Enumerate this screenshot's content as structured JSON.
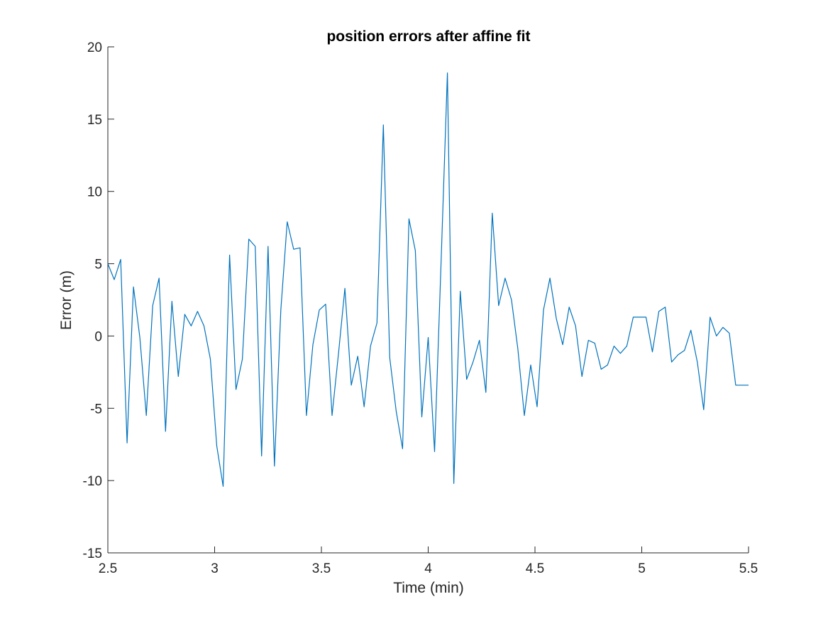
{
  "chart_data": {
    "type": "line",
    "title": "position errors after affine fit",
    "xlabel": "Time (min)",
    "ylabel": "Error (m)",
    "xlim": [
      2.5,
      5.5
    ],
    "ylim": [
      -15,
      20
    ],
    "xticks": [
      2.5,
      3,
      3.5,
      4,
      4.5,
      5,
      5.5
    ],
    "xtick_labels": [
      "2.5",
      "3",
      "3.5",
      "4",
      "4.5",
      "5",
      "5.5"
    ],
    "yticks": [
      -15,
      -10,
      -5,
      0,
      5,
      10,
      15,
      20
    ],
    "ytick_labels": [
      "-15",
      "-10",
      "-5",
      "0",
      "5",
      "10",
      "15",
      "20"
    ],
    "grid": false,
    "series": [
      {
        "color": "#0072BD",
        "x": [
          2.5,
          2.53,
          2.56,
          2.59,
          2.62,
          2.65,
          2.68,
          2.71,
          2.74,
          2.77,
          2.8,
          2.83,
          2.86,
          2.89,
          2.92,
          2.95,
          2.98,
          3.01,
          3.04,
          3.07,
          3.1,
          3.13,
          3.16,
          3.19,
          3.22,
          3.25,
          3.28,
          3.31,
          3.34,
          3.37,
          3.4,
          3.43,
          3.46,
          3.49,
          3.52,
          3.55,
          3.58,
          3.61,
          3.64,
          3.67,
          3.7,
          3.73,
          3.76,
          3.79,
          3.82,
          3.85,
          3.88,
          3.91,
          3.94,
          3.97,
          4.0,
          4.03,
          4.06,
          4.09,
          4.12,
          4.15,
          4.18,
          4.21,
          4.24,
          4.27,
          4.3,
          4.33,
          4.36,
          4.39,
          4.42,
          4.45,
          4.48,
          4.51,
          4.54,
          4.57,
          4.6,
          4.63,
          4.66,
          4.69,
          4.72,
          4.75,
          4.78,
          4.81,
          4.84,
          4.87,
          4.9,
          4.93,
          4.96,
          4.99,
          5.02,
          5.05,
          5.08,
          5.11,
          5.14,
          5.17,
          5.2,
          5.23,
          5.26,
          5.29,
          5.32,
          5.35,
          5.38,
          5.41,
          5.44,
          5.47,
          5.5
        ],
        "y": [
          5.0,
          3.9,
          5.3,
          -7.4,
          3.4,
          -0.1,
          -5.5,
          2.1,
          4.0,
          -6.6,
          2.4,
          -2.8,
          1.5,
          0.7,
          1.7,
          0.7,
          -1.6,
          -7.6,
          -10.4,
          5.6,
          -3.7,
          -1.6,
          6.7,
          6.2,
          -8.3,
          6.2,
          -9.0,
          1.8,
          7.9,
          6.0,
          6.1,
          -5.5,
          -0.6,
          1.8,
          2.2,
          -5.5,
          -1.2,
          3.3,
          -3.4,
          -1.4,
          -4.9,
          -0.7,
          0.9,
          14.6,
          -1.5,
          -5.2,
          -7.8,
          8.1,
          5.9,
          -5.6,
          -0.1,
          -8.0,
          5.0,
          18.2,
          -10.2,
          3.1,
          -3.0,
          -1.8,
          -0.3,
          -3.9,
          8.5,
          2.1,
          4.0,
          2.5,
          -0.9,
          -5.5,
          -2.0,
          -4.9,
          1.8,
          4.0,
          1.2,
          -0.6,
          2.0,
          0.7,
          -2.8,
          -0.3,
          -0.5,
          -2.3,
          -2.0,
          -0.7,
          -1.2,
          -0.7,
          1.3,
          1.3,
          1.3,
          -1.1,
          1.7,
          2.0,
          -1.8,
          -1.3,
          -1.0,
          0.4,
          -1.8,
          -5.1,
          1.3,
          0.0,
          0.6,
          0.2,
          -3.4,
          -3.4,
          -3.4
        ]
      }
    ]
  }
}
